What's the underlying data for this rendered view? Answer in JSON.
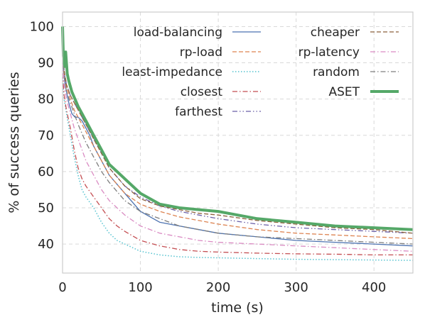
{
  "chart_data": {
    "type": "line",
    "xlabel": "time (s)",
    "ylabel": "% of success queries",
    "xlim": [
      0,
      450
    ],
    "ylim": [
      32,
      104
    ],
    "xticks": [
      0,
      100,
      200,
      300,
      400
    ],
    "yticks": [
      40,
      50,
      60,
      70,
      80,
      90,
      100
    ],
    "grid": true,
    "legend_placement": "top-right, two columns",
    "series": [
      {
        "name": "load-balancing",
        "color": "#4c72b0",
        "dash": "solid",
        "width": 1.3,
        "x": [
          0,
          2,
          5,
          8,
          12,
          16,
          20,
          25,
          30,
          35,
          40,
          50,
          60,
          80,
          100,
          125,
          150,
          175,
          200,
          250,
          300,
          350,
          400,
          450
        ],
        "y": [
          92,
          86,
          82,
          79,
          76,
          75,
          75,
          74,
          72,
          70,
          67,
          63,
          59,
          54,
          49,
          46,
          45,
          44,
          43,
          42,
          41,
          40.5,
          40,
          39.5
        ]
      },
      {
        "name": "rp-load",
        "color": "#dd8452",
        "dash": "dashed",
        "width": 1.3,
        "x": [
          0,
          2,
          5,
          10,
          15,
          20,
          30,
          40,
          50,
          60,
          80,
          100,
          125,
          150,
          175,
          200,
          250,
          300,
          350,
          400,
          450
        ],
        "y": [
          93,
          87,
          83,
          80,
          77,
          75,
          71,
          67,
          63,
          59,
          54,
          51,
          49,
          47.5,
          46.5,
          45.5,
          44,
          43,
          42.5,
          42,
          41.5
        ]
      },
      {
        "name": "least-impedance",
        "color": "#55c3d0",
        "dash": "dotted",
        "width": 1.5,
        "x": [
          0,
          2,
          5,
          10,
          15,
          20,
          25,
          30,
          40,
          50,
          60,
          70,
          80,
          100,
          125,
          150,
          175,
          200,
          250,
          300,
          350,
          400,
          450
        ],
        "y": [
          86,
          80,
          76,
          70,
          64,
          59,
          55,
          53,
          50,
          46,
          43,
          41,
          40,
          38,
          37,
          36.5,
          36.3,
          36.2,
          36,
          35.8,
          35.7,
          35.6,
          35.5
        ]
      },
      {
        "name": "closest",
        "color": "#c44e52",
        "dash": "dashdot",
        "width": 1.3,
        "x": [
          0,
          2,
          5,
          10,
          15,
          20,
          25,
          30,
          40,
          50,
          60,
          70,
          80,
          100,
          125,
          150,
          175,
          200,
          250,
          300,
          350,
          400,
          450
        ],
        "y": [
          87,
          81,
          77,
          72,
          66,
          61,
          58,
          56,
          53,
          50,
          47,
          45,
          43.5,
          41,
          39.5,
          38.5,
          38,
          37.8,
          37.5,
          37.3,
          37.2,
          37,
          37
        ]
      },
      {
        "name": "farthest",
        "color": "#6a5fa8",
        "dash": "dashdotdot",
        "width": 1.3,
        "x": [
          0,
          2,
          5,
          10,
          15,
          20,
          30,
          40,
          50,
          60,
          80,
          100,
          125,
          150,
          175,
          200,
          250,
          300,
          350,
          400,
          450
        ],
        "y": [
          93,
          88,
          84,
          81,
          79,
          77,
          73,
          69,
          65,
          61,
          56,
          53,
          50.5,
          49,
          48,
          47,
          45.5,
          44.5,
          44,
          43.5,
          43
        ]
      },
      {
        "name": "cheaper",
        "color": "#8c613c",
        "dash": "dashed",
        "width": 1.3,
        "x": [
          0,
          2,
          5,
          10,
          15,
          20,
          30,
          40,
          50,
          60,
          80,
          100,
          125,
          150,
          175,
          200,
          250,
          300,
          350,
          400,
          450
        ],
        "y": [
          93,
          88,
          84,
          81,
          79,
          77,
          73,
          69,
          65,
          61,
          56,
          52.5,
          50.5,
          49.5,
          48.5,
          48,
          46.5,
          45.5,
          44.5,
          44,
          43
        ]
      },
      {
        "name": "rp-latency",
        "color": "#da8bc3",
        "dash": "dashdot",
        "width": 1.3,
        "x": [
          0,
          2,
          5,
          10,
          15,
          20,
          25,
          30,
          40,
          50,
          60,
          80,
          100,
          125,
          150,
          175,
          200,
          250,
          300,
          350,
          400,
          450
        ],
        "y": [
          90,
          84,
          80,
          76,
          72,
          69,
          66,
          63,
          59,
          55,
          52,
          48,
          45,
          43,
          42,
          41,
          40.5,
          40,
          39.5,
          39,
          38.5,
          38
        ]
      },
      {
        "name": "random",
        "color": "#7f7f7f",
        "dash": "dashdot",
        "width": 1.3,
        "x": [
          0,
          2,
          5,
          10,
          15,
          20,
          30,
          40,
          50,
          60,
          80,
          100,
          125,
          150,
          175,
          200,
          250,
          300,
          350,
          400,
          450
        ],
        "y": [
          92,
          87,
          82,
          79,
          76,
          73,
          68,
          64,
          60,
          57,
          52,
          49,
          47,
          45,
          44,
          43,
          42,
          41.5,
          41,
          40.5,
          40
        ]
      },
      {
        "name": "ASET",
        "color": "#55a868",
        "dash": "solid",
        "width": 4,
        "x": [
          0,
          1,
          2,
          3,
          4,
          6,
          8,
          12,
          16,
          20,
          30,
          40,
          50,
          60,
          70,
          80,
          100,
          125,
          150,
          175,
          200,
          250,
          300,
          350,
          400,
          450
        ],
        "y": [
          100,
          92,
          90,
          89,
          93,
          87,
          85,
          82,
          80,
          78,
          74,
          70,
          66,
          62,
          60,
          58,
          54,
          51,
          50,
          49.5,
          49,
          47,
          46,
          45,
          44.5,
          44
        ]
      }
    ]
  }
}
